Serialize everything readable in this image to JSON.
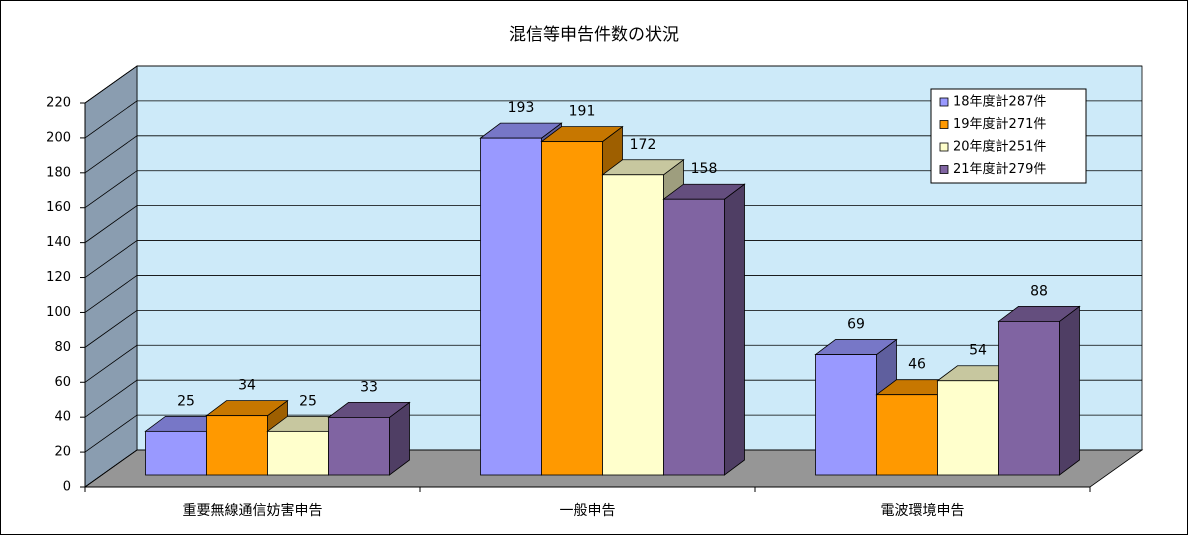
{
  "chart_data": {
    "type": "bar",
    "title": "混信等申告件数の状況",
    "categories": [
      "重要無線通信妨害申告",
      "一般申告",
      "電波環境申告"
    ],
    "series": [
      {
        "name": "18年度計287件",
        "color": "#9999ff",
        "values": [
          25,
          193,
          69
        ]
      },
      {
        "name": "19年度計271件",
        "color": "#ff9900",
        "values": [
          34,
          191,
          46
        ]
      },
      {
        "name": "20年度計251件",
        "color": "#ffffcc",
        "values": [
          25,
          172,
          54
        ]
      },
      {
        "name": "21年度計279件",
        "color": "#8064a2",
        "values": [
          33,
          158,
          88
        ]
      }
    ],
    "ylim": [
      0,
      220
    ],
    "yticks": [
      0,
      20,
      40,
      60,
      80,
      100,
      120,
      140,
      160,
      180,
      200,
      220
    ],
    "grid": true,
    "legend": "top-right"
  }
}
